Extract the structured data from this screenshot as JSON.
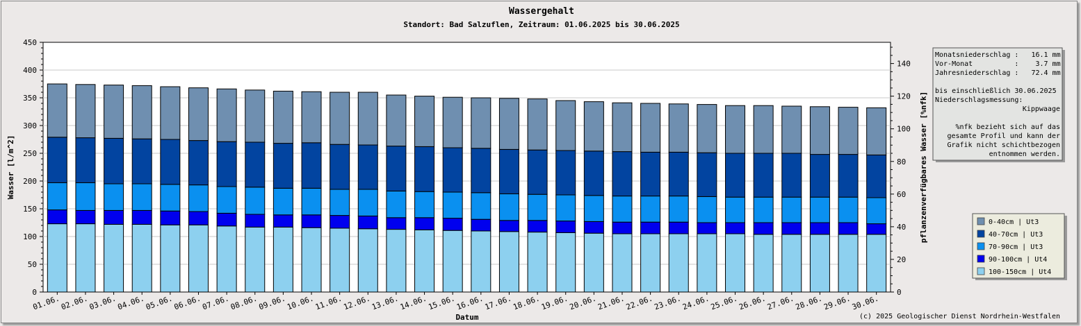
{
  "chart_data": {
    "type": "bar",
    "stacked": true,
    "title": "Wassergehalt",
    "subtitle": "Standort: Bad Salzuflen, Zeitraum: 01.06.2025 bis 30.06.2025",
    "xlabel": "Datum",
    "ylabel": "Wasser [l/m^2]",
    "y2label": "pflanzenverfügbares Wasser [%nfk]",
    "ylim": [
      0,
      450
    ],
    "y2lim": [
      0,
      153
    ],
    "yticks": [
      "0",
      "50",
      "100",
      "150",
      "200",
      "250",
      "300",
      "350",
      "400",
      "450"
    ],
    "y2ticks": [
      "0",
      "20",
      "40",
      "60",
      "80",
      "100",
      "120",
      "140"
    ],
    "grid": true,
    "legend_position": "bottom-right",
    "categories": [
      "01.06.",
      "02.06.",
      "03.06.",
      "04.06.",
      "05.06.",
      "06.06.",
      "07.06.",
      "08.06.",
      "09.06.",
      "10.06.",
      "11.06.",
      "12.06.",
      "13.06.",
      "14.06.",
      "15.06.",
      "16.06.",
      "17.06.",
      "18.06.",
      "19.06.",
      "20.06.",
      "21.06.",
      "22.06.",
      "23.06.",
      "24.06.",
      "25.06.",
      "26.06.",
      "27.06.",
      "28.06.",
      "29.06.",
      "30.06."
    ],
    "series": [
      {
        "name": "100-150cm | Ut4",
        "color": "#8dd0ef",
        "values": [
          123,
          123,
          122,
          122,
          121,
          121,
          119,
          117,
          117,
          116,
          115,
          114,
          113,
          112,
          111,
          110,
          109,
          108,
          107,
          106,
          105,
          105,
          105,
          105,
          105,
          104,
          104,
          104,
          104,
          104
        ]
      },
      {
        "name": "90-100cm | Ut4",
        "color": "#0000ee",
        "values": [
          25,
          24,
          25,
          25,
          25,
          24,
          23,
          23,
          22,
          23,
          23,
          23,
          21,
          22,
          22,
          21,
          20,
          21,
          21,
          21,
          21,
          21,
          21,
          20,
          20,
          21,
          21,
          21,
          21,
          19
        ]
      },
      {
        "name": "70-90cm | Ut3",
        "color": "#0a90f0",
        "values": [
          49,
          50,
          48,
          48,
          48,
          48,
          48,
          49,
          48,
          48,
          47,
          48,
          48,
          47,
          47,
          48,
          48,
          47,
          47,
          47,
          47,
          47,
          47,
          47,
          46,
          46,
          46,
          46,
          46,
          47
        ]
      },
      {
        "name": "40-70cm | Ut3",
        "color": "#0244a0",
        "values": [
          82,
          81,
          82,
          81,
          81,
          80,
          81,
          81,
          81,
          82,
          81,
          80,
          81,
          81,
          80,
          80,
          80,
          80,
          80,
          80,
          80,
          79,
          79,
          79,
          79,
          79,
          79,
          77,
          77,
          77
        ]
      },
      {
        "name": "0-40cm | Ut3",
        "color": "#6f8fb0",
        "values": [
          96,
          96,
          96,
          96,
          95,
          95,
          95,
          94,
          94,
          92,
          94,
          95,
          92,
          91,
          91,
          91,
          92,
          92,
          90,
          89,
          88,
          88,
          87,
          87,
          86,
          86,
          85,
          86,
          85,
          85
        ]
      }
    ]
  },
  "info_box": {
    "lines": [
      "Monatsniederschlag :   16.1 mm",
      "Vor-Monat          :    3.7 mm",
      "Jahresniederschlag :   72.4 mm",
      "",
      "bis einschließlich 30.06.2025",
      "Niederschlagsmessung:",
      "Kippwaage",
      "",
      "%nfk bezieht sich auf das",
      "gesamte Profil und kann der",
      "Grafik nicht schichtbezogen",
      "entnommen werden."
    ]
  },
  "copyright": "(c) 2025 Geologischer Dienst Nordrhein-Westfalen"
}
